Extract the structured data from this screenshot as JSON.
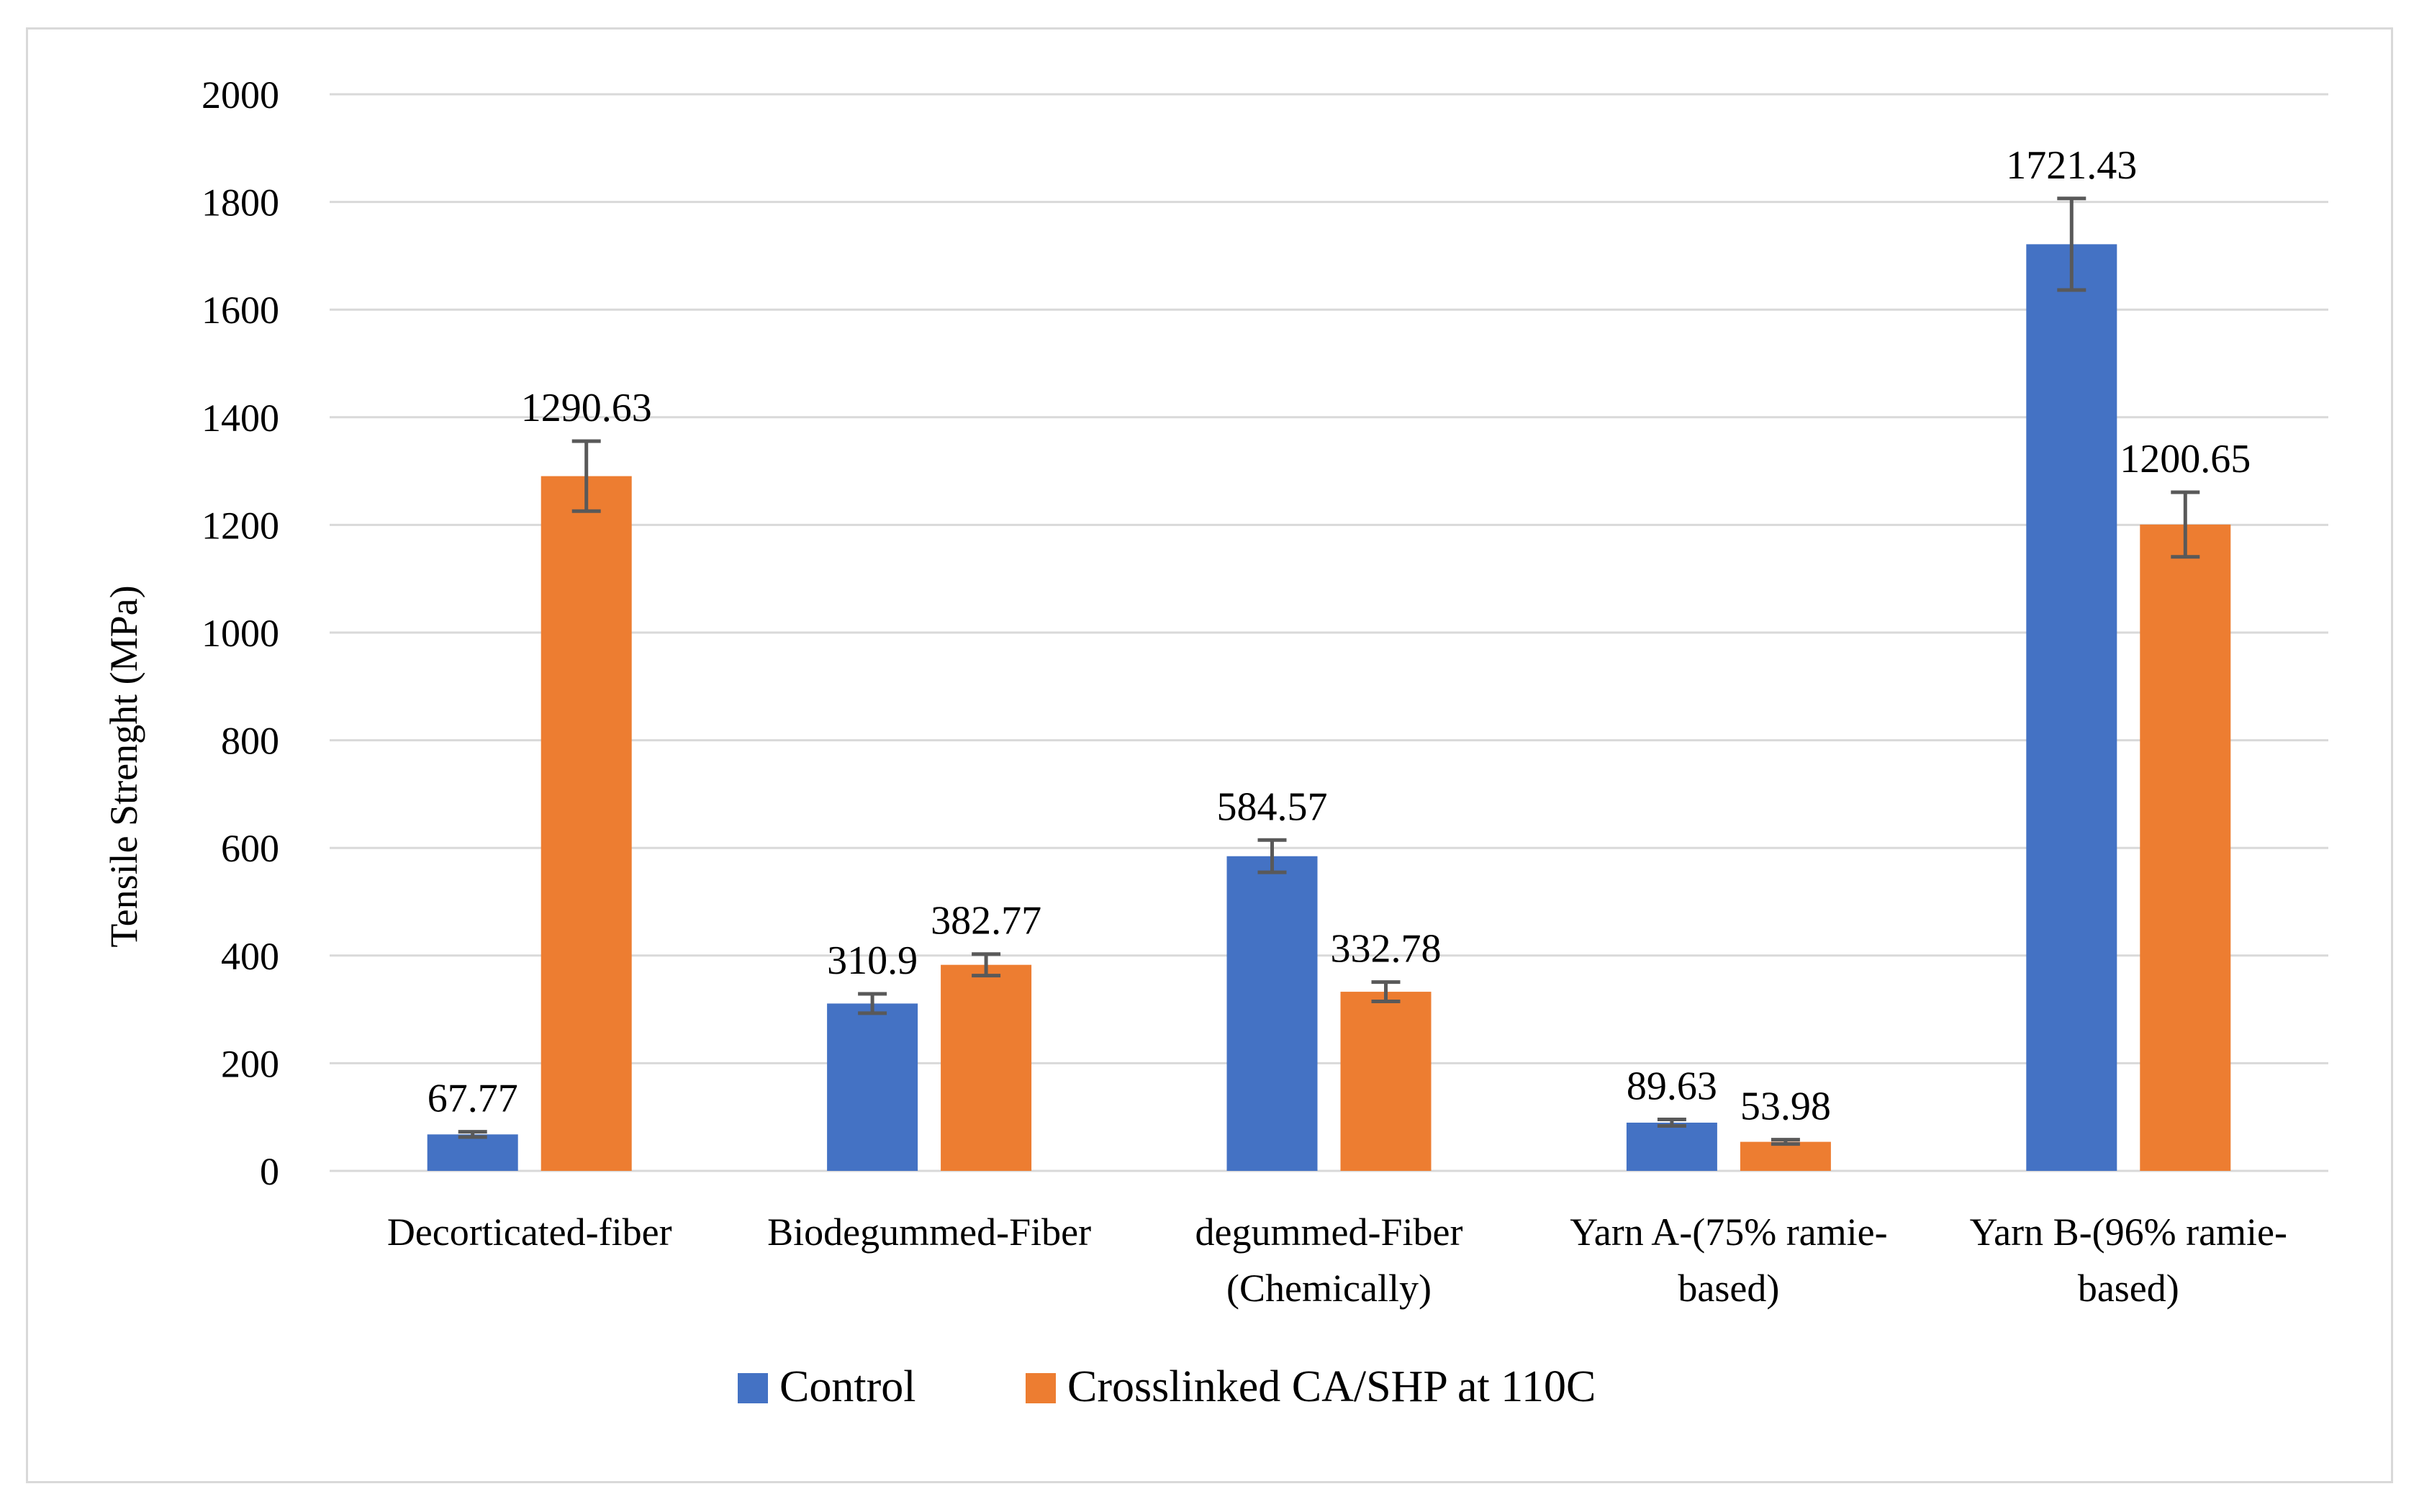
{
  "chart_data": {
    "type": "bar",
    "title": "",
    "xlabel": "",
    "ylabel": "Tensile Strenght (MPa)",
    "ylim": [
      0,
      2000
    ],
    "yticks": [
      0,
      200,
      400,
      600,
      800,
      1000,
      1200,
      1400,
      1600,
      1800,
      2000
    ],
    "grid": true,
    "legend_position": "bottom",
    "categories": [
      [
        "Decorticated-fiber"
      ],
      [
        "Biodegummed-Fiber"
      ],
      [
        "degummed-Fiber",
        "(Chemically)"
      ],
      [
        "Yarn A-(75% ramie-",
        "based)"
      ],
      [
        "Yarn B-(96% ramie-",
        "based)"
      ]
    ],
    "series": [
      {
        "name": "Control",
        "color": "#4472c4",
        "values": [
          67.77,
          310.9,
          584.57,
          89.63,
          1721.43
        ],
        "errors": [
          5,
          18,
          30,
          6,
          85
        ],
        "labels": [
          "67.77",
          "310.9",
          "584.57",
          "89.63",
          "1721.43"
        ]
      },
      {
        "name": "Crosslinked CA/SHP at 110C",
        "color": "#ed7d31",
        "values": [
          1290.63,
          382.77,
          332.78,
          53.98,
          1200.65
        ],
        "errors": [
          65,
          20,
          18,
          4,
          60
        ],
        "labels": [
          "1290.63",
          "382.77",
          "332.78",
          "53.98",
          "1200.65"
        ]
      }
    ]
  }
}
